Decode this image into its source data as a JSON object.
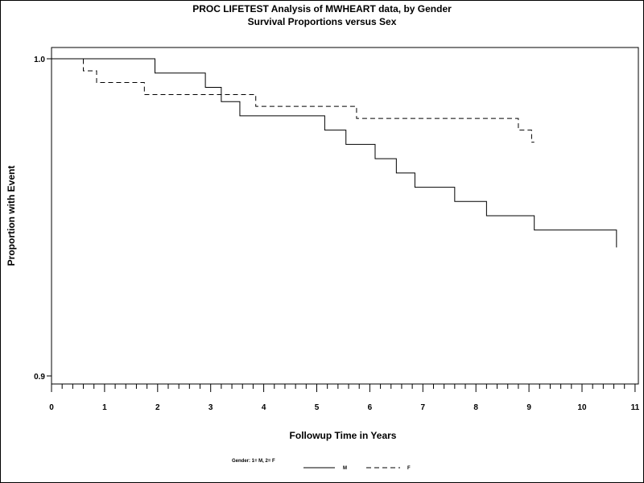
{
  "chart_data": {
    "type": "line",
    "step": true,
    "title": "PROC LIFETEST Analysis of MWHEART data, by Gender",
    "subtitle": "Survival Proportions versus Sex",
    "xlabel": "Followup Time in Years",
    "ylabel": "Proportion with Event",
    "xlim": [
      0,
      11
    ],
    "ylim": [
      0.9,
      1.0
    ],
    "x_ticks": [
      0,
      1,
      2,
      3,
      4,
      5,
      6,
      7,
      8,
      9,
      10,
      11
    ],
    "x_tick_labels": [
      "0",
      "1",
      "2",
      "3",
      "4",
      "5",
      "6",
      "7",
      "8",
      "9",
      "10",
      "11"
    ],
    "x_minor_step": 0.2,
    "y_ticks": [
      0.9,
      1.0
    ],
    "y_tick_labels": [
      "0.9",
      "1.0"
    ],
    "grid": false,
    "legend": {
      "title": "Gender: 1= M, 2= F",
      "placement": "bottom-center"
    },
    "series": [
      {
        "name": "M",
        "style": "solid",
        "color": "#000000",
        "x": [
          0,
          1.95,
          2.9,
          3.2,
          3.55,
          5.15,
          5.55,
          6.1,
          6.5,
          6.85,
          7.6,
          8.2,
          9.1,
          10.65
        ],
        "y": [
          1.0,
          0.9955,
          0.991,
          0.9865,
          0.982,
          0.9775,
          0.973,
          0.9685,
          0.964,
          0.9595,
          0.955,
          0.9505,
          0.946,
          0.9405
        ]
      },
      {
        "name": "F",
        "style": "dashed",
        "color": "#000000",
        "x": [
          0,
          0.6,
          0.85,
          1.75,
          3.85,
          5.75,
          8.8,
          9.05,
          9.1
        ],
        "y": [
          1.0,
          0.9962,
          0.9925,
          0.9887,
          0.985,
          0.9812,
          0.9775,
          0.9737,
          0.9737
        ]
      }
    ]
  }
}
